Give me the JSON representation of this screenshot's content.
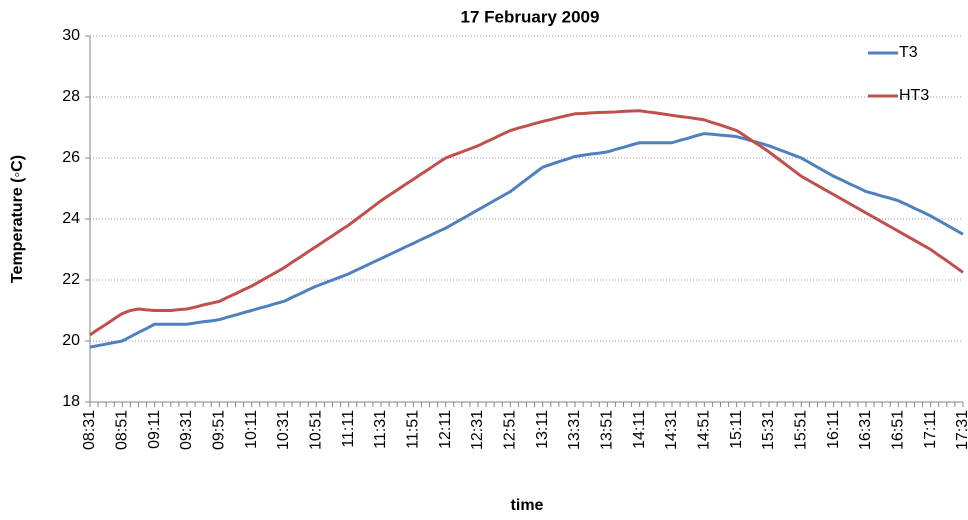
{
  "chart_data": {
    "type": "line",
    "title": "17 February 2009",
    "x_label": "time",
    "y_label": "Temperature (◦C)",
    "categories": [
      "08:31",
      null,
      null,
      null,
      "08:51",
      null,
      null,
      null,
      "09:11",
      null,
      null,
      null,
      "09:31",
      null,
      null,
      null,
      "09:51",
      null,
      null,
      null,
      "10:11",
      null,
      null,
      null,
      "10:31",
      null,
      null,
      null,
      "10:51",
      null,
      null,
      null,
      "11:11",
      null,
      null,
      null,
      "11:31",
      null,
      null,
      null,
      "11:51",
      null,
      null,
      null,
      "12:11",
      null,
      null,
      null,
      "12:31",
      null,
      null,
      null,
      "12:51",
      null,
      null,
      null,
      "13:11",
      null,
      null,
      null,
      "13:31",
      null,
      null,
      null,
      "13:51",
      null,
      null,
      null,
      "14:11",
      null,
      null,
      null,
      "14:31",
      null,
      null,
      null,
      "14:51",
      null,
      null,
      null,
      "15:11",
      null,
      null,
      null,
      "15:31",
      null,
      null,
      null,
      "15:51",
      null,
      null,
      null,
      "16:11",
      null,
      null,
      null,
      "16:31",
      null,
      null,
      null,
      "16:51",
      null,
      null,
      null,
      "17:11",
      null,
      null,
      null,
      "17:31"
    ],
    "series": [
      {
        "name": "T3",
        "color": "#4f81bd",
        "values": [
          19.8,
          19.85,
          19.9,
          19.95,
          20.0,
          20.14,
          20.28,
          20.41,
          20.55,
          20.55,
          20.55,
          20.55,
          20.55,
          20.59,
          20.63,
          20.66,
          20.7,
          20.78,
          20.85,
          20.93,
          21.0,
          21.08,
          21.15,
          21.23,
          21.3,
          21.43,
          21.55,
          21.68,
          21.8,
          21.9,
          22.0,
          22.1,
          22.2,
          22.33,
          22.45,
          22.58,
          22.7,
          22.83,
          22.95,
          23.08,
          23.2,
          23.33,
          23.45,
          23.58,
          23.7,
          23.85,
          24.0,
          24.15,
          24.3,
          24.45,
          24.6,
          24.75,
          24.9,
          25.1,
          25.3,
          25.5,
          25.7,
          25.79,
          25.88,
          25.96,
          26.05,
          26.09,
          26.13,
          26.16,
          26.2,
          26.28,
          26.35,
          26.43,
          26.5,
          26.5,
          26.5,
          26.5,
          26.5,
          26.58,
          26.65,
          26.73,
          26.8,
          26.78,
          26.75,
          26.73,
          26.7,
          26.63,
          26.55,
          26.48,
          26.4,
          26.3,
          26.2,
          26.1,
          26.0,
          25.85,
          25.7,
          25.55,
          25.4,
          25.28,
          25.15,
          25.03,
          24.9,
          24.83,
          24.75,
          24.68,
          24.6,
          24.48,
          24.35,
          24.23,
          24.1,
          23.95,
          23.8,
          23.65,
          23.5
        ]
      },
      {
        "name": "HT3",
        "color": "#c0504d",
        "values": [
          20.2,
          20.38,
          20.55,
          20.73,
          20.9,
          21.0,
          21.05,
          21.02,
          21.0,
          21.0,
          21.0,
          21.03,
          21.05,
          21.11,
          21.18,
          21.24,
          21.3,
          21.43,
          21.55,
          21.68,
          21.8,
          21.95,
          22.1,
          22.25,
          22.4,
          22.58,
          22.75,
          22.93,
          23.1,
          23.28,
          23.45,
          23.63,
          23.8,
          24.0,
          24.2,
          24.4,
          24.6,
          24.78,
          24.95,
          25.13,
          25.3,
          25.48,
          25.65,
          25.83,
          26.0,
          26.1,
          26.2,
          26.3,
          26.4,
          26.53,
          26.65,
          26.78,
          26.9,
          26.98,
          27.05,
          27.13,
          27.2,
          27.26,
          27.33,
          27.39,
          27.45,
          27.46,
          27.48,
          27.49,
          27.5,
          27.51,
          27.53,
          27.54,
          27.55,
          27.51,
          27.48,
          27.44,
          27.4,
          27.36,
          27.33,
          27.29,
          27.25,
          27.16,
          27.08,
          26.99,
          26.9,
          26.73,
          26.55,
          26.38,
          26.2,
          26.0,
          25.8,
          25.6,
          25.4,
          25.25,
          25.1,
          24.95,
          24.8,
          24.65,
          24.5,
          24.35,
          24.2,
          24.05,
          23.9,
          23.75,
          23.6,
          23.45,
          23.3,
          23.15,
          23.0,
          22.81,
          22.63,
          22.44,
          22.25
        ]
      }
    ],
    "ylim": [
      18,
      30
    ],
    "yticks": [
      18,
      20,
      22,
      24,
      26,
      28,
      30
    ],
    "grid": true,
    "legend": "top-right"
  }
}
